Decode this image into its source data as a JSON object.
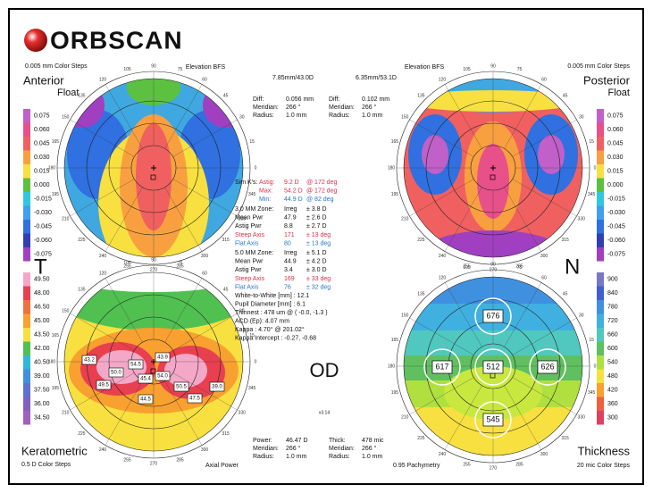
{
  "header": {
    "logo": "ORBSCAN"
  },
  "anterior": {
    "color_steps": "0.005 mm Color Steps",
    "title": "Anterior",
    "subtitle": "Float",
    "reference": "Elevation BFS",
    "bfs": "7.85mm/43.0D",
    "legend": [
      "0.075",
      "0.060",
      "0.045",
      "0.030",
      "0.015",
      "0.000",
      "-0.015",
      "-0.030",
      "-0.045",
      "-0.060",
      "-0.075"
    ],
    "readout": [
      [
        "Diff:",
        "0.056 mm"
      ],
      [
        "Meridian:",
        "266 °"
      ],
      [
        "Radius:",
        "1.0 mm"
      ]
    ]
  },
  "posterior": {
    "color_steps": "0.005 mm Color Steps",
    "title": "Posterior",
    "subtitle": "Float",
    "reference": "Elevation BFS",
    "bfs": "6.35mm/53.1D",
    "legend": [
      "0.075",
      "0.060",
      "0.045",
      "0.030",
      "0.015",
      "0.000",
      "-0.015",
      "-0.030",
      "-0.045",
      "-0.060",
      "-0.075"
    ],
    "readout": [
      [
        "Diff:",
        "0.102 mm"
      ],
      [
        "Meridian:",
        "266 °"
      ],
      [
        "Radius:",
        "1.0 mm"
      ]
    ]
  },
  "keratometric": {
    "title": "Keratometric",
    "color_steps": "0.5 D Color Steps",
    "map_type": "Axial Power",
    "legend": [
      "49.50",
      "48.00",
      "46.50",
      "45.00",
      "43.50",
      "42.00",
      "40.50",
      "39.00",
      "37.50",
      "36.00",
      "34.50"
    ],
    "readout": [
      [
        "Power:",
        "46.47 D"
      ],
      [
        "Meridian:",
        "266 °"
      ],
      [
        "Radius:",
        "1.0 mm"
      ]
    ],
    "map_labels": [
      "43.2",
      "50.0",
      "54.5",
      "43.9",
      "45.4",
      "54.0",
      "50.5",
      "49.5",
      "44.5",
      "47.5",
      "39.0"
    ]
  },
  "thickness": {
    "title": "Thickness",
    "color_steps": "20 mic Color Steps",
    "map_type": "0.95 Pachymetry",
    "legend": [
      "900",
      "840",
      "780",
      "720",
      "660",
      "600",
      "540",
      "480",
      "420",
      "360",
      "300"
    ],
    "readout": [
      [
        "Thick:",
        "478 mic"
      ],
      [
        "Meridian:",
        "266 °"
      ],
      [
        "Radius:",
        "1.0 mm"
      ]
    ],
    "map_labels": [
      "676",
      "617",
      "512",
      "626",
      "545"
    ]
  },
  "orientation": {
    "temporal": "T",
    "nasal": "N",
    "eye": "OD",
    "version": "v3.14"
  },
  "ring_labels": [
    "0",
    "15",
    "30",
    "45",
    "60",
    "75",
    "90",
    "105",
    "120",
    "135",
    "150",
    "165",
    "180",
    "195",
    "210",
    "225",
    "240",
    "255",
    "270",
    "285",
    "300",
    "315",
    "330",
    "345"
  ],
  "summary": {
    "sim_k": [
      [
        "Sim K's:",
        "Astig:",
        "9.2 D",
        "@ 172 deg"
      ],
      [
        "Max:",
        "54.2 D",
        "@ 172 deg"
      ],
      [
        "Min:",
        "44.9 D",
        "@ 82 deg"
      ]
    ],
    "zone_3": [
      [
        "3.0 MM Zone:",
        "Irreg",
        "± 3.8 D"
      ],
      [
        "Mean Pwr",
        "47.9",
        "± 2.6 D"
      ],
      [
        "Astig Pwr",
        "8.8",
        "± 2.7 D"
      ],
      [
        "Steep Axis",
        "171",
        "± 13 deg"
      ],
      [
        "Flat Axis",
        "80",
        "± 13 deg"
      ]
    ],
    "zone_5": [
      [
        "5.0 MM Zone:",
        "Irreg",
        "± 5.1 D"
      ],
      [
        "Mean Pwr",
        "44.9",
        "± 4.2 D"
      ],
      [
        "Astig Pwr",
        "3.4",
        "± 3.0 D"
      ],
      [
        "Steep Axis",
        "169",
        "± 33 deg"
      ],
      [
        "Flat Axis",
        "76",
        "± 32 deg"
      ]
    ],
    "misc": [
      "White-to-White [mm] : 12.1",
      "Pupil Diameter [mm] : 6.1",
      "Thinnest : 478 um @ ( -0.0, -1.3 )",
      "ACD (Ep): 4.07 mm",
      "Kappa : 4.70° @ 201.02°",
      "Kappa Intercept : -0.27, -0.68"
    ]
  }
}
